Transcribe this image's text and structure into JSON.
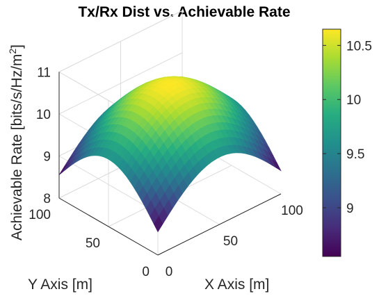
{
  "chart_data": {
    "type": "surface",
    "title": "Tx/Rx Dist vs. Achievable Rate",
    "xlabel": "X Axis [m]",
    "ylabel": "Y Axis [m]",
    "zlabel": "Achievable Rate [bits/s/Hz/m",
    "zlabel_superscript": "2",
    "zlabel_close": "]",
    "xlim": [
      0,
      100
    ],
    "ylim": [
      0,
      100
    ],
    "zlim": [
      8,
      11
    ],
    "x_ticks": [
      "0",
      "50",
      "100"
    ],
    "y_ticks": [
      "0",
      "50",
      "100"
    ],
    "z_ticks": [
      "8",
      "9",
      "10",
      "11"
    ],
    "surface": {
      "peak": {
        "x": 50,
        "y": 50,
        "z": 10.65
      },
      "corner_values": {
        "x0_y0": 8.55,
        "x100_y0": 8.55,
        "x0_y100": 8.55,
        "x100_y100": 8.55
      },
      "edge_midpoint_value": 9.35,
      "colormap": "viridis"
    },
    "colorbar": {
      "range": [
        8.55,
        10.65
      ],
      "ticks": [
        "9",
        "9.5",
        "10",
        "10.5"
      ]
    },
    "grid": true
  }
}
